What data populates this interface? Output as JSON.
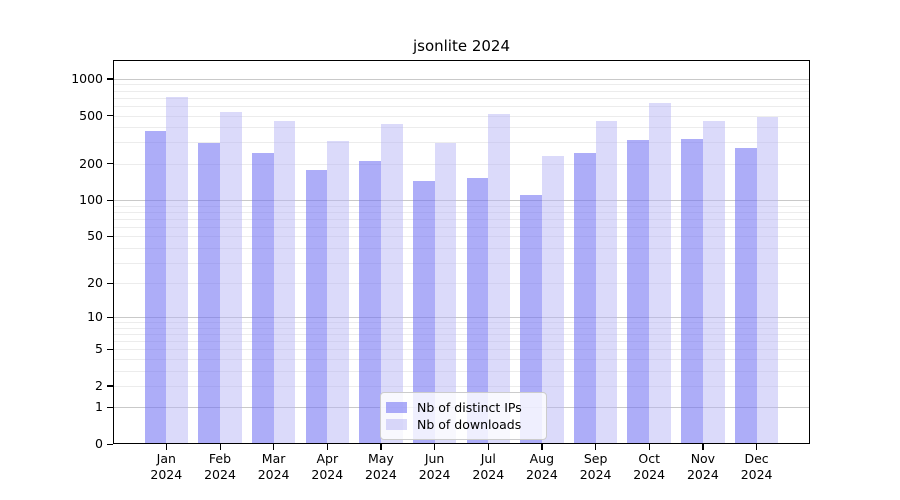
{
  "chart_data": {
    "type": "bar",
    "title": "jsonlite 2024",
    "categories": [
      "Jan",
      "Feb",
      "Mar",
      "Apr",
      "May",
      "Jun",
      "Jul",
      "Aug",
      "Sep",
      "Oct",
      "Nov",
      "Dec"
    ],
    "category_year": "2024",
    "series": [
      {
        "name": "Nb of distinct IPs",
        "color": "rgba(110,110,242,0.57)",
        "values": [
          374,
          295,
          244,
          177,
          212,
          145,
          153,
          110,
          244,
          314,
          322,
          268
        ]
      },
      {
        "name": "Nb of downloads",
        "color": "rgba(180,178,245,0.48)",
        "values": [
          710,
          538,
          450,
          308,
          425,
          295,
          514,
          230,
          453,
          630,
          453,
          489
        ]
      }
    ],
    "y_axis": {
      "scale": "log10(1+x)",
      "tick_labels": [
        1000,
        500,
        200,
        100,
        50,
        20,
        10,
        5,
        2,
        1,
        0
      ],
      "major_gridlines": [
        1,
        10,
        100,
        1000
      ],
      "minor_gridlines": [
        2,
        3,
        4,
        5,
        6,
        7,
        8,
        9,
        20,
        30,
        40,
        50,
        60,
        70,
        80,
        90,
        200,
        300,
        400,
        500,
        600,
        700,
        800,
        900
      ],
      "ylim_top_value": 1430
    },
    "legend_position": "bottom-center",
    "grid": true,
    "colors": {
      "major_grid": "#c9c9c9",
      "minor_grid": "#ececec",
      "axis": "#000000",
      "background": "#ffffff"
    }
  }
}
